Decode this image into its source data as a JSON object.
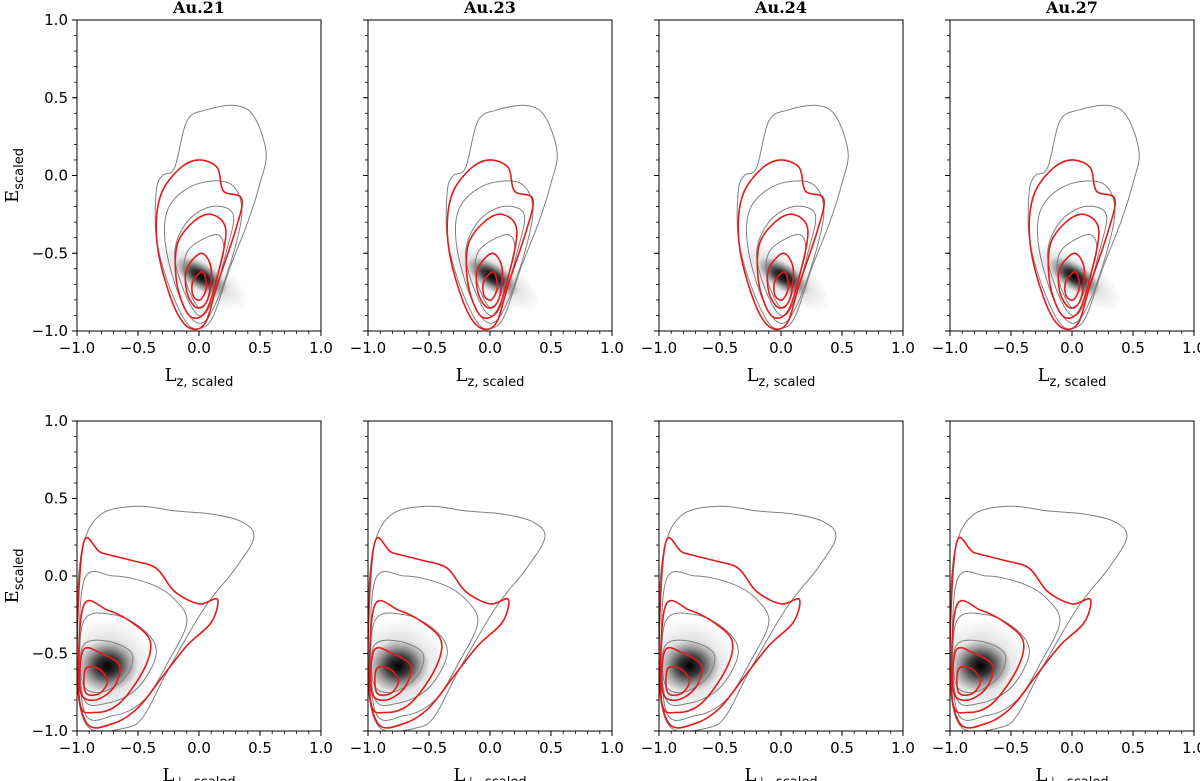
{
  "chart_data": {
    "type": "density-contour",
    "xlim": [
      -1.0,
      1.0
    ],
    "ylim": [
      -1.0,
      1.0
    ],
    "ticks": [
      -1.0,
      -0.5,
      0.0,
      0.5,
      1.0
    ],
    "tick_labels": [
      "−1.0",
      "−0.5",
      "0.0",
      "0.5",
      "1.0"
    ],
    "ylabel": {
      "main": "E",
      "sub": "scaled"
    },
    "rows": [
      {
        "xlabel": {
          "main": "L",
          "sub": "z, scaled"
        },
        "density_core": {
          "x": 0.02,
          "y": -0.65,
          "sx": 0.12,
          "sy": 0.16,
          "rho": 0.6
        },
        "red_core": {
          "x": 0.02,
          "y": -0.72
        }
      },
      {
        "xlabel": {
          "main": "L",
          "sub": "⊥, scaled"
        },
        "density_core": {
          "x": -0.75,
          "y": -0.58,
          "sx": 0.28,
          "sy": 0.14,
          "rho": 0.1
        },
        "red_core": {
          "x": -0.88,
          "y": -0.7
        }
      }
    ],
    "panels": [
      {
        "title": "Au.21"
      },
      {
        "title": "Au.23"
      },
      {
        "title": "Au.24"
      },
      {
        "title": "Au.27"
      }
    ]
  },
  "colors": {
    "density": "#000000",
    "gray_contour": "#808080",
    "red_contour": "#e41a1c"
  }
}
